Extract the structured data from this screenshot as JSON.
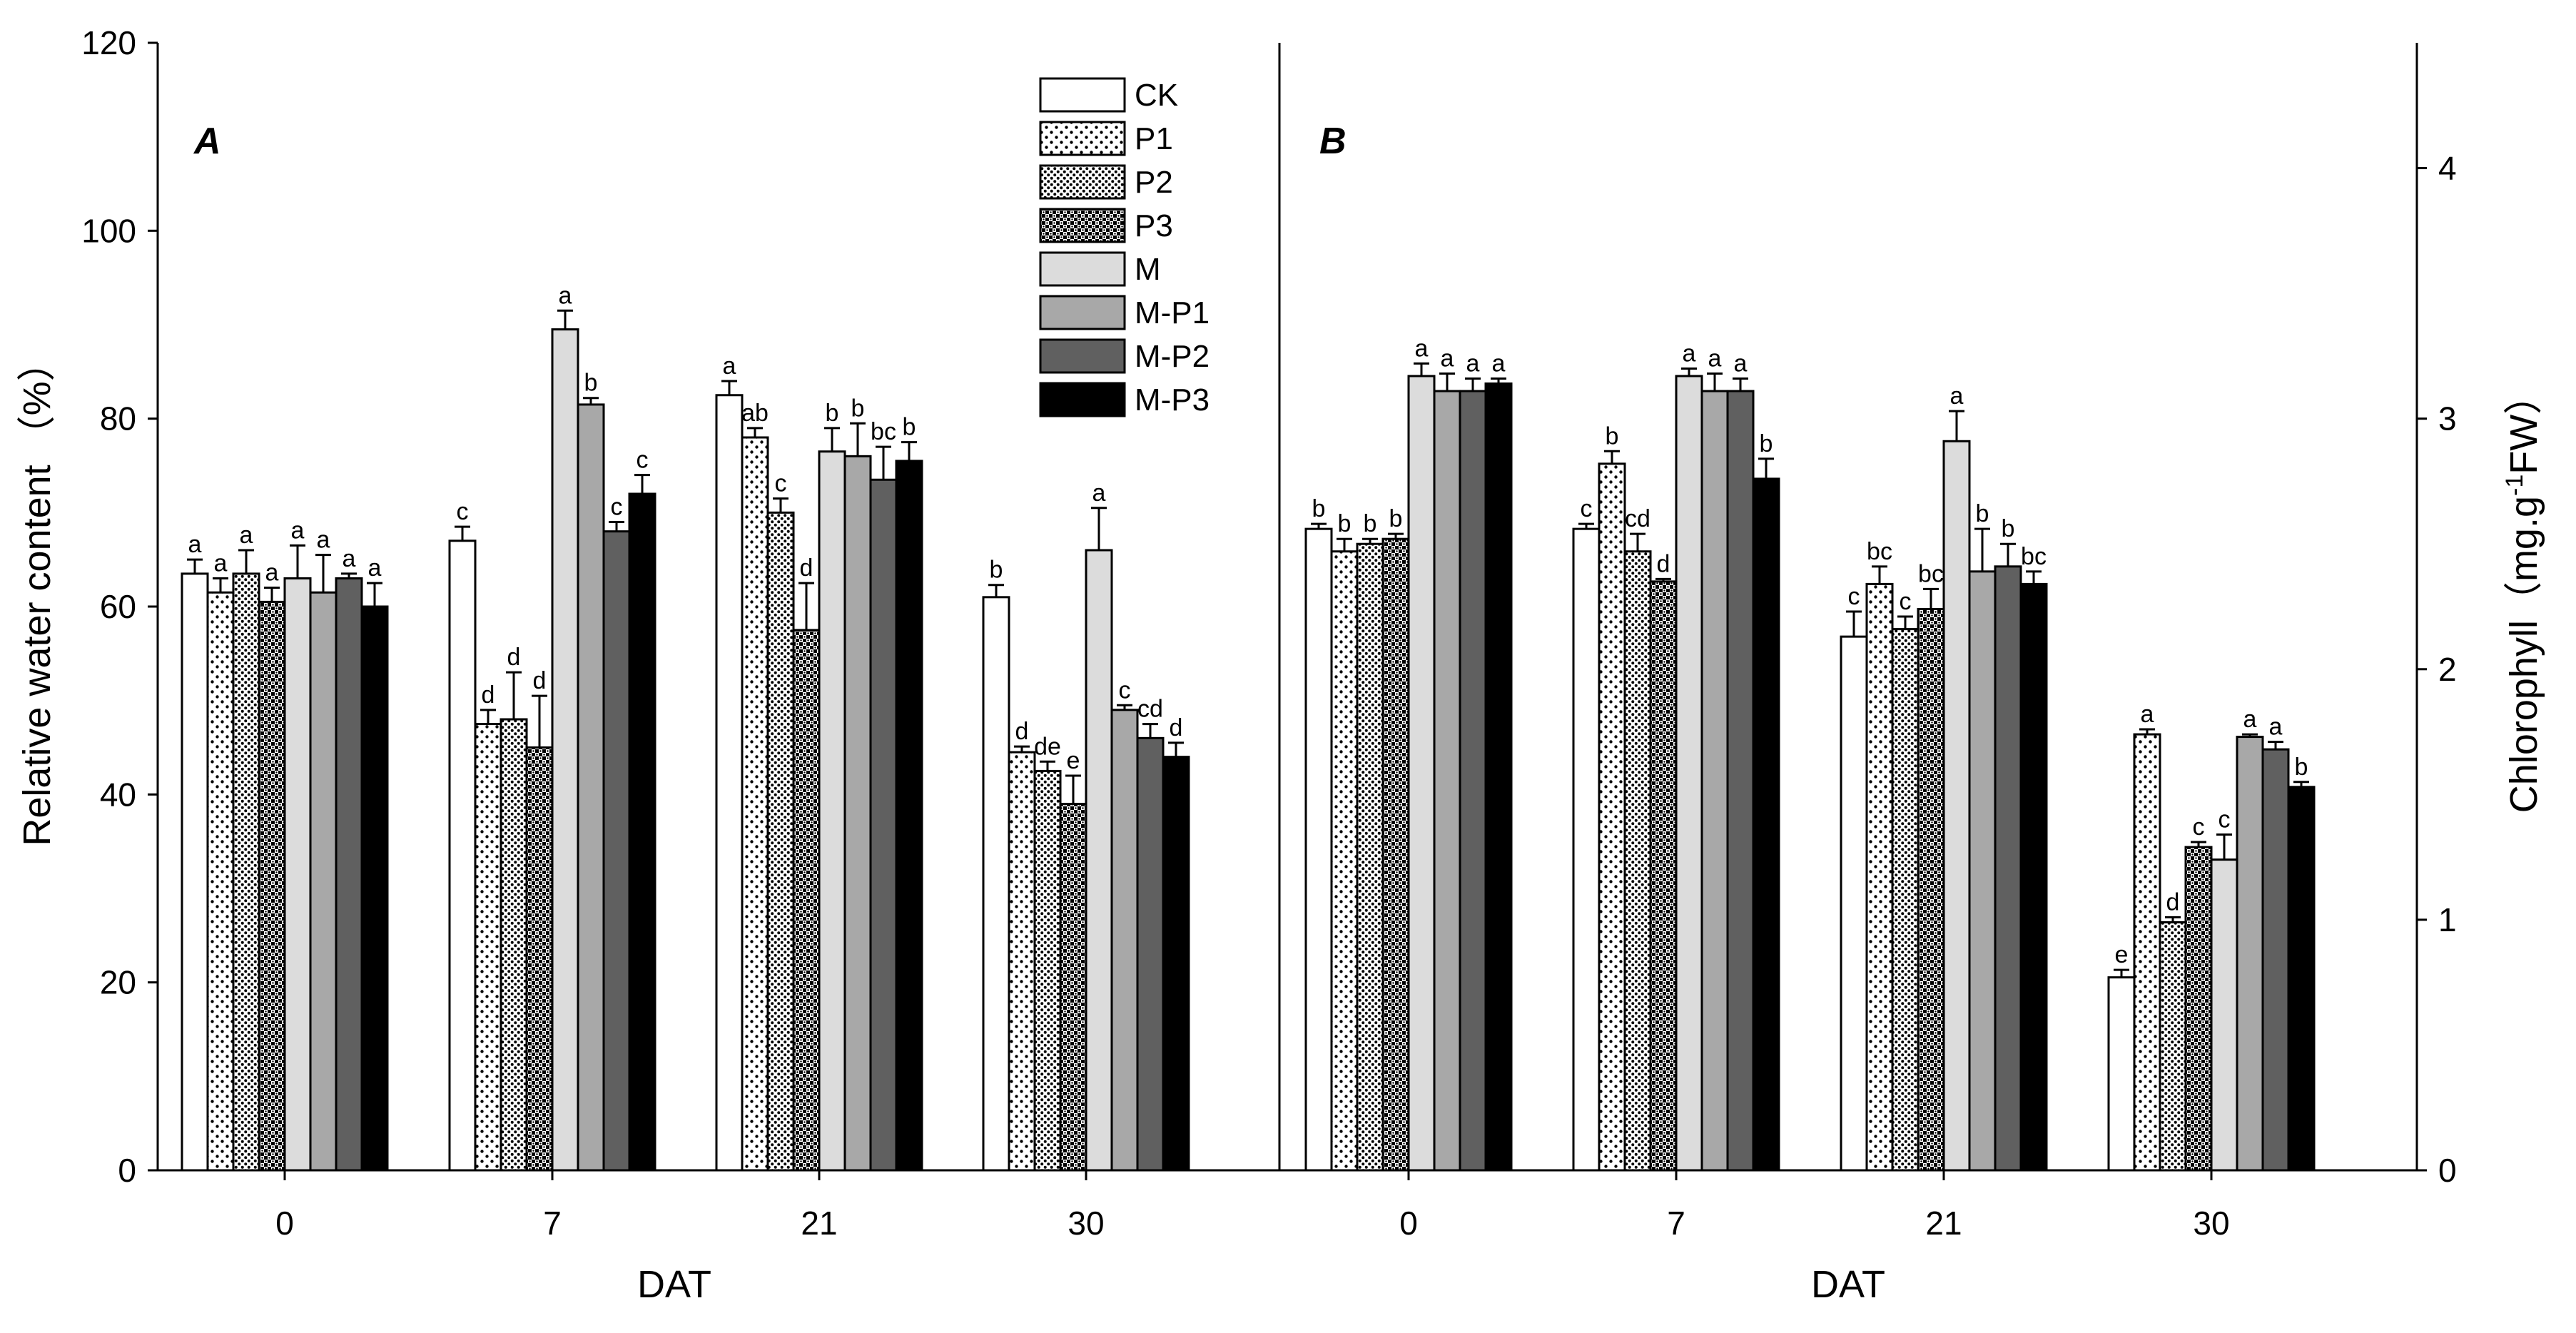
{
  "chart_data": [
    {
      "type": "bar",
      "panel_label": "A",
      "categories": [
        "0",
        "7",
        "21",
        "30"
      ],
      "xlabel": "DAT",
      "ylabel": "Relative water content （%）",
      "ylim": [
        0,
        120
      ],
      "yticks": [
        "0",
        "20",
        "40",
        "60",
        "80",
        "100",
        "120"
      ],
      "legend_placement": "top-right",
      "series": [
        {
          "name": "CK",
          "values": [
            63.5,
            67,
            82.5,
            61
          ],
          "errors": [
            1.5,
            1.5,
            1.5,
            1.3
          ],
          "labels": [
            "a",
            "c",
            "a",
            "b"
          ]
        },
        {
          "name": "P1",
          "values": [
            61.5,
            47.5,
            78,
            44.5
          ],
          "errors": [
            1.5,
            1.5,
            1,
            0.6
          ],
          "labels": [
            "a",
            "d",
            "ab",
            "d"
          ]
        },
        {
          "name": "P2",
          "values": [
            63.5,
            48,
            70,
            42.5
          ],
          "errors": [
            2.5,
            5,
            1.5,
            1
          ],
          "labels": [
            "a",
            "d",
            "c",
            "de"
          ]
        },
        {
          "name": "P3",
          "values": [
            60.5,
            45,
            57.5,
            39
          ],
          "errors": [
            1.5,
            5.5,
            5,
            3
          ],
          "labels": [
            "a",
            "d",
            "d",
            "e"
          ]
        },
        {
          "name": "M",
          "values": [
            63,
            89.5,
            76.5,
            66
          ],
          "errors": [
            3.5,
            2,
            2.5,
            4.5
          ],
          "labels": [
            "a",
            "a",
            "b",
            "a"
          ]
        },
        {
          "name": "M-P1",
          "values": [
            61.5,
            81.5,
            76,
            49
          ],
          "errors": [
            4,
            0.7,
            3.5,
            0.5
          ],
          "labels": [
            "a",
            "b",
            "b",
            "c"
          ]
        },
        {
          "name": "M-P2",
          "values": [
            63,
            68,
            73.5,
            46
          ],
          "errors": [
            0.5,
            1,
            3.5,
            1.5
          ],
          "labels": [
            "a",
            "c",
            "bc",
            "cd"
          ]
        },
        {
          "name": "M-P3",
          "values": [
            60,
            72,
            75.5,
            44
          ],
          "errors": [
            2.5,
            2,
            2,
            1.5
          ],
          "labels": [
            "a",
            "c",
            "b",
            "d"
          ]
        }
      ]
    },
    {
      "type": "bar",
      "panel_label": "B",
      "categories": [
        "0",
        "7",
        "21",
        "30"
      ],
      "xlabel": "DAT",
      "ylabel_main": "Chlorophyll（mg.g",
      "ylabel_superscript": "-1",
      "ylabel_end": "FW）",
      "ylim": [
        0,
        4.5
      ],
      "yticks": [
        "0",
        "1",
        "2",
        "3",
        "4"
      ],
      "series": [
        {
          "name": "CK",
          "values": [
            2.56,
            2.56,
            2.13,
            0.77
          ],
          "errors": [
            0.02,
            0.02,
            0.1,
            0.03
          ],
          "labels": [
            "b",
            "c",
            "c",
            "e"
          ]
        },
        {
          "name": "P1",
          "values": [
            2.47,
            2.82,
            2.34,
            1.74
          ],
          "errors": [
            0.05,
            0.05,
            0.07,
            0.02
          ],
          "labels": [
            "b",
            "b",
            "bc",
            "a"
          ]
        },
        {
          "name": "P2",
          "values": [
            2.5,
            2.47,
            2.16,
            0.99
          ],
          "errors": [
            0.02,
            0.07,
            0.05,
            0.02
          ],
          "labels": [
            "b",
            "cd",
            "c",
            "d"
          ]
        },
        {
          "name": "P3",
          "values": [
            2.52,
            2.35,
            2.24,
            1.29
          ],
          "errors": [
            0.02,
            0.01,
            0.08,
            0.02
          ],
          "labels": [
            "b",
            "d",
            "bc",
            "c"
          ]
        },
        {
          "name": "M",
          "values": [
            3.17,
            3.17,
            2.91,
            1.24
          ],
          "errors": [
            0.05,
            0.03,
            0.12,
            0.1
          ],
          "labels": [
            "a",
            "a",
            "a",
            "c"
          ]
        },
        {
          "name": "M-P1",
          "values": [
            3.11,
            3.11,
            2.39,
            1.73
          ],
          "errors": [
            0.07,
            0.07,
            0.17,
            0.01
          ],
          "labels": [
            "a",
            "a",
            "b",
            "a"
          ]
        },
        {
          "name": "M-P2",
          "values": [
            3.11,
            3.11,
            2.41,
            1.68
          ],
          "errors": [
            0.05,
            0.05,
            0.09,
            0.03
          ],
          "labels": [
            "a",
            "a",
            "b",
            "a"
          ]
        },
        {
          "name": "M-P3",
          "values": [
            3.14,
            2.76,
            2.34,
            1.53
          ],
          "errors": [
            0.02,
            0.08,
            0.05,
            0.02
          ],
          "labels": [
            "a",
            "b",
            "bc",
            "b"
          ]
        }
      ]
    }
  ],
  "series_fills": [
    "#ffffff",
    "pattern-dots-sparse",
    "pattern-dots-dense",
    "pattern-checker",
    "#dcdcdc",
    "#a8a8a8",
    "#606060",
    "#000000"
  ]
}
